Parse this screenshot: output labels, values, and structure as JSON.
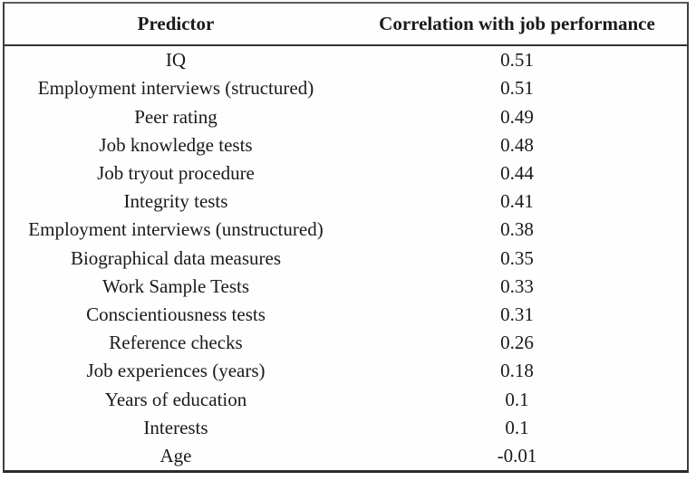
{
  "colors": {
    "background": "#ffffff",
    "text": "#1a1a1a",
    "border": "#3f3f3f"
  },
  "table": {
    "columns": [
      "Predictor",
      "Correlation with job performance"
    ],
    "rows": [
      {
        "predictor": "IQ",
        "correlation": "0.51"
      },
      {
        "predictor": "Employment interviews (structured)",
        "correlation": "0.51"
      },
      {
        "predictor": "Peer rating",
        "correlation": "0.49"
      },
      {
        "predictor": "Job knowledge tests",
        "correlation": "0.48"
      },
      {
        "predictor": "Job tryout procedure",
        "correlation": "0.44"
      },
      {
        "predictor": "Integrity tests",
        "correlation": "0.41"
      },
      {
        "predictor": "Employment interviews (unstructured)",
        "correlation": "0.38"
      },
      {
        "predictor": "Biographical data measures",
        "correlation": "0.35"
      },
      {
        "predictor": "Work Sample Tests",
        "correlation": "0.33"
      },
      {
        "predictor": "Conscientiousness tests",
        "correlation": "0.31"
      },
      {
        "predictor": "Reference checks",
        "correlation": "0.26"
      },
      {
        "predictor": "Job experiences (years)",
        "correlation": "0.18"
      },
      {
        "predictor": "Years of education",
        "correlation": "0.1"
      },
      {
        "predictor": "Interests",
        "correlation": "0.1"
      },
      {
        "predictor": "Age",
        "correlation": "-0.01"
      }
    ]
  },
  "chart_data": {
    "type": "table",
    "title": "",
    "columns": [
      "Predictor",
      "Correlation with job performance"
    ],
    "categories": [
      "IQ",
      "Employment interviews (structured)",
      "Peer rating",
      "Job knowledge tests",
      "Job tryout procedure",
      "Integrity tests",
      "Employment interviews (unstructured)",
      "Biographical data measures",
      "Work Sample Tests",
      "Conscientiousness tests",
      "Reference checks",
      "Job experiences (years)",
      "Years of education",
      "Interests",
      "Age"
    ],
    "values": [
      0.51,
      0.51,
      0.49,
      0.48,
      0.44,
      0.41,
      0.38,
      0.35,
      0.33,
      0.31,
      0.26,
      0.18,
      0.1,
      0.1,
      -0.01
    ]
  }
}
